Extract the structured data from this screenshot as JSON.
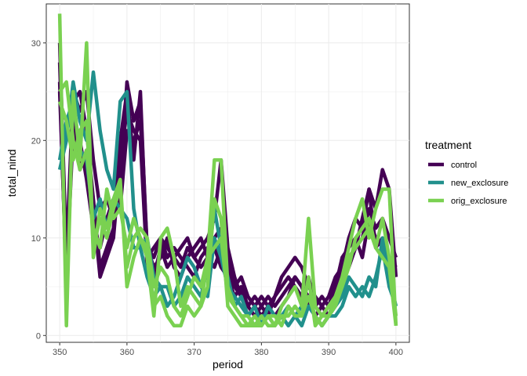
{
  "chart_data": {
    "type": "line",
    "title": "",
    "xlabel": "period",
    "ylabel": "total_nind",
    "xlim": [
      348,
      402
    ],
    "ylim": [
      -0.7,
      34
    ],
    "x_ticks": [
      350,
      360,
      370,
      380,
      390,
      400
    ],
    "y_ticks": [
      0,
      10,
      20,
      30
    ],
    "x_tick_labels": [
      "350",
      "360",
      "370",
      "380",
      "390",
      "400"
    ],
    "y_tick_labels": [
      "0",
      "10",
      "20",
      "30"
    ],
    "grid": true,
    "legend": {
      "title": "treatment",
      "position": "right",
      "entries": [
        {
          "label": "control",
          "color": "#440154"
        },
        {
          "label": "new_exclosure",
          "color": "#21908C"
        },
        {
          "label": "orig_exclosure",
          "color": "#7AD151"
        }
      ]
    },
    "series": [
      {
        "group": "control",
        "color": "#440154",
        "x": [
          350,
          351,
          352,
          353,
          354,
          355,
          356,
          357,
          358,
          359,
          360,
          361,
          362,
          363,
          364,
          365,
          366,
          367,
          368,
          369,
          370,
          371,
          372,
          373,
          374,
          375,
          376,
          377,
          378,
          379,
          380,
          381,
          382,
          383,
          384,
          385,
          386,
          387,
          388,
          389,
          390,
          391,
          392,
          393,
          394,
          395,
          396,
          397,
          398,
          399,
          400
        ],
        "y": [
          30,
          8,
          25,
          23,
          25,
          18,
          13,
          14,
          12,
          15,
          26,
          22,
          24,
          9,
          8,
          10,
          9,
          8,
          7,
          9,
          8,
          9,
          10,
          12,
          18,
          9,
          6,
          4,
          3,
          2,
          3,
          4,
          3,
          4,
          5,
          6,
          5,
          4,
          3,
          4,
          3,
          5,
          6,
          7,
          9,
          12,
          15,
          13,
          17,
          15,
          6
        ]
      },
      {
        "group": "control",
        "color": "#440154",
        "x": [
          350,
          351,
          352,
          353,
          354,
          355,
          356,
          357,
          358,
          359,
          360,
          361,
          362,
          363,
          364,
          365,
          366,
          367,
          368,
          369,
          370,
          371,
          372,
          373,
          374,
          375,
          376,
          377,
          378,
          379,
          380,
          381,
          382,
          383,
          384,
          385,
          386,
          387,
          388,
          389,
          390,
          391,
          392,
          393,
          394,
          395,
          396,
          397,
          398,
          399,
          400
        ],
        "y": [
          28,
          7,
          24,
          25,
          21,
          14,
          7,
          9,
          11,
          20,
          25,
          18,
          25,
          8,
          9,
          10,
          8,
          9,
          8,
          7,
          6,
          8,
          9,
          10,
          11,
          8,
          5,
          6,
          4,
          3,
          2,
          3,
          4,
          6,
          7,
          8,
          7,
          5,
          4,
          3,
          2,
          4,
          7,
          10,
          12,
          11,
          15,
          9,
          10,
          8,
          7
        ]
      },
      {
        "group": "control",
        "color": "#440154",
        "x": [
          350,
          351,
          352,
          353,
          354,
          355,
          356,
          357,
          358,
          359,
          360,
          361,
          362,
          363,
          364,
          365,
          366,
          367,
          368,
          369,
          370,
          371,
          372,
          373,
          374,
          375,
          376,
          377,
          378,
          379,
          380,
          381,
          382,
          383,
          384,
          385,
          386,
          387,
          388,
          389,
          390,
          391,
          392,
          393,
          394,
          395,
          396,
          397,
          398,
          399,
          400
        ],
        "y": [
          26,
          5,
          23,
          17,
          19,
          13,
          6,
          8,
          10,
          18,
          23,
          21,
          20,
          7,
          6,
          9,
          7,
          8,
          9,
          10,
          8,
          7,
          8,
          9,
          7,
          6,
          4,
          5,
          3,
          4,
          3,
          2,
          4,
          5,
          6,
          5,
          4,
          6,
          3,
          2,
          3,
          5,
          8,
          9,
          10,
          8,
          12,
          10,
          9,
          8,
          6
        ]
      },
      {
        "group": "control",
        "color": "#440154",
        "x": [
          350,
          351,
          352,
          353,
          354,
          355,
          356,
          357,
          358,
          359,
          360,
          361,
          362,
          363,
          364,
          365,
          366,
          367,
          368,
          369,
          370,
          371,
          372,
          373,
          374,
          375,
          376,
          377,
          378,
          379,
          380,
          381,
          382,
          383,
          384,
          385,
          386,
          387,
          388,
          389,
          390,
          391,
          392,
          393,
          394,
          395,
          396,
          397,
          398,
          399,
          400
        ],
        "y": [
          25,
          6,
          21,
          20,
          16,
          11,
          9,
          12,
          14,
          13,
          21,
          20,
          22,
          9,
          7,
          8,
          10,
          7,
          6,
          8,
          9,
          10,
          8,
          7,
          9,
          7,
          5,
          4,
          2,
          3,
          4,
          3,
          2,
          3,
          4,
          6,
          5,
          3,
          2,
          3,
          4,
          6,
          7,
          8,
          9,
          10,
          13,
          11,
          12,
          10,
          8
        ]
      },
      {
        "group": "new_exclosure",
        "color": "#21908C",
        "x": [
          350,
          351,
          352,
          353,
          354,
          355,
          356,
          357,
          358,
          359,
          360,
          361,
          362,
          363,
          364,
          365,
          366,
          367,
          368,
          369,
          370,
          371,
          372,
          373,
          374,
          375,
          376,
          377,
          378,
          379,
          380,
          381,
          382,
          383,
          384,
          385,
          386,
          387,
          388,
          389,
          390,
          391,
          392,
          393,
          394,
          395,
          396,
          397,
          398,
          399,
          400
        ],
        "y": [
          17,
          20,
          26,
          22,
          20,
          27,
          21,
          17,
          15,
          24,
          25,
          13,
          9,
          10,
          6,
          5,
          5,
          3,
          4,
          6,
          5,
          4,
          7,
          13,
          9,
          6,
          3,
          4,
          2,
          3,
          1,
          3,
          2,
          2,
          1,
          2,
          3,
          4,
          2,
          1,
          2,
          3,
          4,
          6,
          5,
          4,
          6,
          5,
          10,
          6,
          3
        ]
      },
      {
        "group": "new_exclosure",
        "color": "#21908C",
        "x": [
          350,
          351,
          352,
          353,
          354,
          355,
          356,
          357,
          358,
          359,
          360,
          361,
          362,
          363,
          364,
          365,
          366,
          367,
          368,
          369,
          370,
          371,
          372,
          373,
          374,
          375,
          376,
          377,
          378,
          379,
          380,
          381,
          382,
          383,
          384,
          385,
          386,
          387,
          388,
          389,
          390,
          391,
          392,
          393,
          394,
          395,
          396,
          397,
          398,
          399,
          400
        ],
        "y": [
          18,
          22,
          24,
          19,
          18,
          12,
          14,
          11,
          14,
          13,
          12,
          9,
          9,
          6,
          4,
          5,
          3,
          4,
          6,
          8,
          7,
          5,
          4,
          10,
          8,
          5,
          4,
          3,
          2,
          1,
          2,
          2,
          1,
          2,
          3,
          2,
          1,
          3,
          2,
          1,
          2,
          2,
          3,
          5,
          4,
          5,
          4,
          6,
          9,
          5,
          3
        ]
      },
      {
        "group": "orig_exclosure",
        "color": "#7AD151",
        "x": [
          350,
          351,
          352,
          353,
          354,
          355,
          356,
          357,
          358,
          359,
          360,
          361,
          362,
          363,
          364,
          365,
          366,
          367,
          368,
          369,
          370,
          371,
          372,
          373,
          374,
          375,
          376,
          377,
          378,
          379,
          380,
          381,
          382,
          383,
          384,
          385,
          386,
          387,
          388,
          389,
          390,
          391,
          392,
          393,
          394,
          395,
          396,
          397,
          398,
          399,
          400
        ],
        "y": [
          33,
          1,
          25,
          18,
          30,
          8,
          13,
          11,
          14,
          16,
          5,
          8,
          10,
          8,
          2,
          10,
          11,
          8,
          3,
          5,
          4,
          3,
          8,
          18,
          18,
          5,
          3,
          2,
          2,
          1,
          1,
          2,
          1,
          3,
          4,
          5,
          3,
          12,
          3,
          2,
          3,
          4,
          6,
          9,
          12,
          14,
          10,
          13,
          15,
          15,
          1
        ]
      },
      {
        "group": "orig_exclosure",
        "color": "#7AD151",
        "x": [
          350,
          351,
          352,
          353,
          354,
          355,
          356,
          357,
          358,
          359,
          360,
          361,
          362,
          363,
          364,
          365,
          366,
          367,
          368,
          369,
          370,
          371,
          372,
          373,
          374,
          375,
          376,
          377,
          378,
          379,
          380,
          381,
          382,
          383,
          384,
          385,
          386,
          387,
          388,
          389,
          390,
          391,
          392,
          393,
          394,
          395,
          396,
          397,
          398,
          399,
          400
        ],
        "y": [
          25,
          26,
          20,
          17,
          19,
          11,
          9,
          15,
          12,
          13,
          9,
          12,
          10,
          9,
          3,
          4,
          2,
          1,
          1,
          3,
          2,
          3,
          5,
          14,
          12,
          3,
          2,
          1,
          1,
          1,
          2,
          1,
          1,
          2,
          2,
          3,
          2,
          4,
          2,
          1,
          2,
          3,
          5,
          7,
          10,
          11,
          12,
          9,
          12,
          8,
          2
        ]
      },
      {
        "group": "orig_exclosure",
        "color": "#7AD151",
        "x": [
          350,
          351,
          352,
          353,
          354,
          355,
          356,
          357,
          358,
          359,
          360,
          361,
          362,
          363,
          364,
          365,
          366,
          367,
          368,
          369,
          370,
          371,
          372,
          373,
          374,
          375,
          376,
          377,
          378,
          379,
          380,
          381,
          382,
          383,
          384,
          385,
          386,
          387,
          388,
          389,
          390,
          391,
          392,
          393,
          394,
          395,
          396,
          397,
          398,
          399,
          400
        ],
        "y": [
          24,
          22,
          18,
          21,
          22,
          9,
          12,
          10,
          13,
          15,
          7,
          10,
          11,
          10,
          5,
          7,
          6,
          3,
          2,
          4,
          6,
          5,
          8,
          9,
          10,
          4,
          3,
          2,
          1,
          2,
          1,
          2,
          2,
          1,
          3,
          2,
          2,
          6,
          1,
          2,
          2,
          4,
          5,
          8,
          9,
          10,
          11,
          9,
          8,
          7,
          1
        ]
      }
    ]
  }
}
